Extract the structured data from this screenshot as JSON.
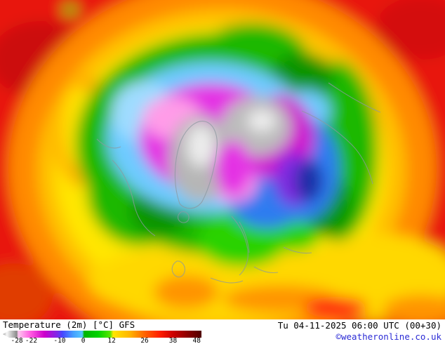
{
  "legend": {
    "title": "Temperature (2m)",
    "unit": "[°C]",
    "model": "GFS",
    "datetime": "Tu 04-11-2025 06:00 UTC (00+30)",
    "copyright": "©weatheronline.co.uk",
    "copyright_color": "#2b2bd5"
  },
  "chart_data": {
    "type": "heatmap",
    "title": "Temperature (2m) [°C] GFS",
    "subtitle": "Tu 04-11-2025 06:00 UTC (00+30)",
    "unit": "°C",
    "projection_note": "north-polar view temperature field",
    "colorbar": {
      "min": -34,
      "max": 50,
      "ticks": [
        -28,
        -22,
        -10,
        0,
        12,
        26,
        38,
        48
      ],
      "stops": [
        {
          "pos": 0.0,
          "color": "#a0a0a0"
        },
        {
          "pos": 0.02,
          "color": "#f8f8f8"
        },
        {
          "pos": 0.07,
          "color": "#8a8a8a"
        },
        {
          "pos": 0.078,
          "color": "#ffc8f0"
        },
        {
          "pos": 0.143,
          "color": "#ff55e0"
        },
        {
          "pos": 0.21,
          "color": "#cc00cc"
        },
        {
          "pos": 0.275,
          "color": "#7d2ae8"
        },
        {
          "pos": 0.3,
          "color": "#4646ff"
        },
        {
          "pos": 0.355,
          "color": "#46a0ff"
        },
        {
          "pos": 0.4,
          "color": "#55c8ff"
        },
        {
          "pos": 0.41,
          "color": "#00b400"
        },
        {
          "pos": 0.48,
          "color": "#00d200"
        },
        {
          "pos": 0.54,
          "color": "#55e600"
        },
        {
          "pos": 0.556,
          "color": "#ffe600"
        },
        {
          "pos": 0.64,
          "color": "#ffb400"
        },
        {
          "pos": 0.714,
          "color": "#ff6400"
        },
        {
          "pos": 0.79,
          "color": "#ff1e00"
        },
        {
          "pos": 0.857,
          "color": "#cd0000"
        },
        {
          "pos": 0.93,
          "color": "#8c0000"
        },
        {
          "pos": 1.0,
          "color": "#500000"
        }
      ]
    },
    "field_colors": {
      "warmest": "#e8150f",
      "warm": "#ff8a00",
      "mild": "#ffe600",
      "cool": "#1db800",
      "cold": "#2e7bf0",
      "very_cold": "#e431e4",
      "extreme_cold": "#b6b6b6"
    }
  }
}
